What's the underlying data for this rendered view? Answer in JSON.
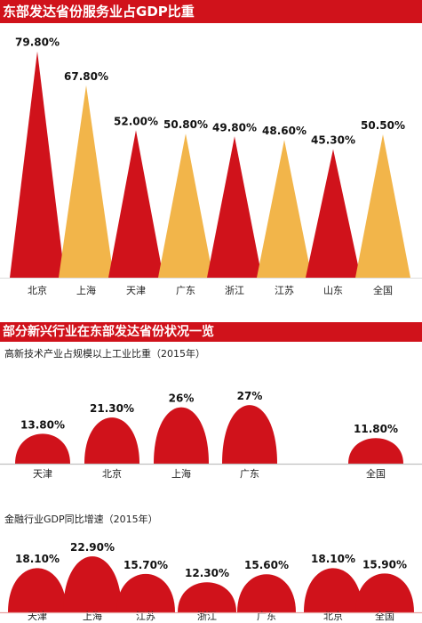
{
  "colors": {
    "red": "#d0121b",
    "gold": "#f2b54a",
    "band": "#d0121b"
  },
  "chart_data": [
    {
      "type": "bar",
      "title": "东部发达省份服务业占GDP比重",
      "categories": [
        "北京",
        "上海",
        "天津",
        "广东",
        "浙江",
        "江苏",
        "山东",
        "全国"
      ],
      "values": [
        79.8,
        67.8,
        52.0,
        50.8,
        49.8,
        48.6,
        45.3,
        50.5
      ],
      "labels": [
        "79.80%",
        "67.80%",
        "52.00%",
        "50.80%",
        "49.80%",
        "48.60%",
        "45.30%",
        "50.50%"
      ],
      "bar_colors": [
        "red",
        "gold",
        "red",
        "gold",
        "red",
        "gold",
        "red",
        "gold"
      ],
      "ylim": [
        0,
        80
      ]
    },
    {
      "type": "bar",
      "title": "高新技术产业占规模以上工业比重（2015年）",
      "categories": [
        "天津",
        "北京",
        "上海",
        "广东",
        "全国"
      ],
      "values": [
        13.8,
        21.3,
        26,
        27,
        11.8
      ],
      "labels": [
        "13.80%",
        "21.30%",
        "26%",
        "27%",
        "11.80%"
      ],
      "ylim": [
        0,
        27
      ]
    },
    {
      "type": "bar",
      "title": "金融行业GDP同比增速（2015年）",
      "categories": [
        "天津",
        "上海",
        "江苏",
        "浙江",
        "广东",
        "北京",
        "全国"
      ],
      "values": [
        18.1,
        22.9,
        15.7,
        12.3,
        15.6,
        18.1,
        15.9
      ],
      "labels": [
        "18.10%",
        "22.90%",
        "15.70%",
        "12.30%",
        "15.60%",
        "18.10%",
        "15.90%"
      ],
      "ylim": [
        0,
        22.9
      ]
    }
  ],
  "section2_title": "部分新兴行业在东部发达省份状况一览"
}
